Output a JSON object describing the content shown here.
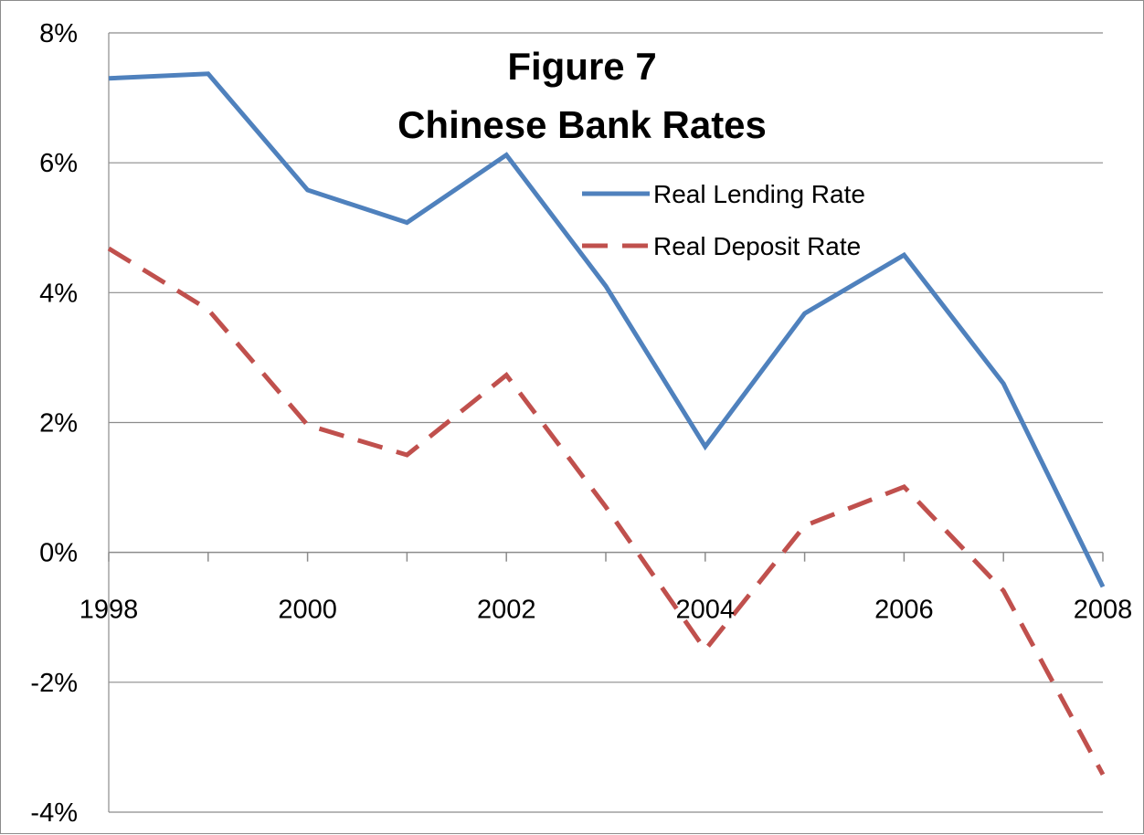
{
  "chart_data": {
    "type": "line",
    "title": "Figure 7",
    "subtitle": "Chinese Bank Rates",
    "xlabel": "",
    "ylabel": "",
    "x": [
      1998,
      1999,
      2000,
      2001,
      2002,
      2003,
      2004,
      2005,
      2006,
      2007,
      2008
    ],
    "x_tick_labels": [
      "1998",
      "2000",
      "2002",
      "2004",
      "2006",
      "2008"
    ],
    "y_tick_labels": [
      "-4%",
      "-2%",
      "0%",
      "2%",
      "4%",
      "6%",
      "8%"
    ],
    "xlim": [
      1998,
      2008
    ],
    "ylim": [
      -4,
      8
    ],
    "y_unit": "%",
    "grid": "horizontal",
    "legend_position": "top-right",
    "series": [
      {
        "name": "Real Lending Rate",
        "values": [
          7.3,
          7.37,
          5.58,
          5.08,
          6.12,
          4.1,
          1.63,
          3.68,
          4.58,
          2.6,
          -0.53
        ],
        "color": "#4f81bd",
        "style": "solid"
      },
      {
        "name": "Real Deposit Rate",
        "values": [
          4.68,
          3.74,
          1.96,
          1.5,
          2.73,
          0.7,
          -1.5,
          0.41,
          1.01,
          -0.59,
          -3.42
        ],
        "color": "#c0504d",
        "style": "dashed"
      }
    ]
  }
}
